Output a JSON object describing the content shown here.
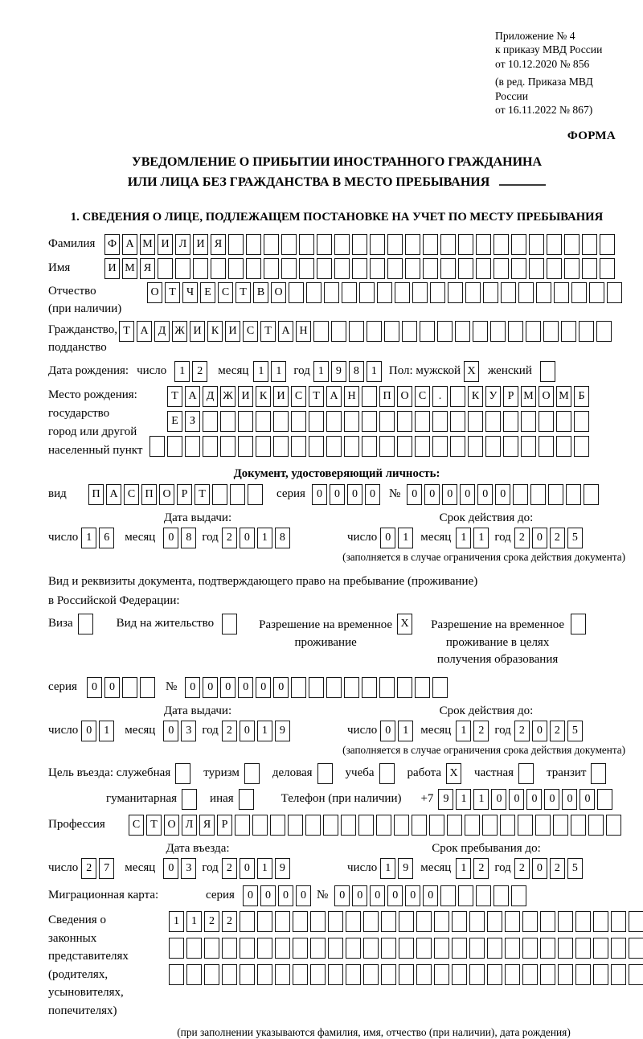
{
  "header": {
    "appendix": [
      "Приложение № 4",
      "к приказу МВД России",
      "от 10.12.2020 № 856"
    ],
    "edition": [
      "(в ред. Приказа МВД России",
      "от 16.11.2022 № 867)"
    ],
    "form_label": "ФОРМА"
  },
  "title": {
    "line1": "УВЕДОМЛЕНИЕ О ПРИБЫТИИ ИНОСТРАННОГО ГРАЖДАНИНА",
    "line2": "ИЛИ ЛИЦА БЕЗ ГРАЖДАНСТВА В МЕСТО ПРЕБЫВАНИЯ"
  },
  "section1": {
    "heading": "1. СВЕДЕНИЯ О ЛИЦЕ, ПОДЛЕЖАЩЕМ ПОСТАНОВКЕ НА УЧЕТ ПО МЕСТУ ПРЕБЫВАНИЯ"
  },
  "date_labels": {
    "day": "число",
    "month": "месяц",
    "year": "год"
  },
  "person": {
    "surname": {
      "label": "Фамилия",
      "row": {
        "value": "ФАМИЛИЯ",
        "cells": 29
      }
    },
    "given_name": {
      "label": "Имя",
      "row": {
        "value": "ИМЯ",
        "cells": 29
      }
    },
    "patronymic": {
      "label": "Отчество",
      "label_note": "(при наличии)",
      "row": {
        "value": "ОТЧЕСТВО",
        "cells": 27
      }
    },
    "citizenship": {
      "label": "Гражданство,",
      "label2": "подданство",
      "row": {
        "value": "ТАДЖИКИСТАН",
        "cells": 28
      }
    },
    "birth_date": {
      "label": "Дата рождения:",
      "day": "12",
      "month": "11",
      "year": "1981"
    },
    "sex": {
      "label": "Пол: мужской",
      "male_value": "X",
      "female_label": "женский",
      "female_value": ""
    },
    "birth_place": {
      "label_lines": [
        "Место рождения:",
        "государство",
        "город или другой",
        "населенный пункт"
      ],
      "row1": {
        "value": "ТАДЖИКИСТАН ПОС. КУРМОМБ",
        "cells": 24
      },
      "row2": {
        "value": "ЕЗ",
        "cells": 24
      },
      "row3": {
        "value": "",
        "cells": 25
      }
    }
  },
  "identity_doc": {
    "heading": "Документ, удостоверяющий личность:",
    "kind_label": "вид",
    "kind": {
      "value": "ПАСПОРТ",
      "cells": 10
    },
    "series_label": "серия",
    "series": {
      "value": "0000",
      "cells": 4
    },
    "number_label": "№",
    "number": {
      "value": "000000",
      "cells": 11
    },
    "issue_heading": "Дата выдачи:",
    "issue": {
      "day": "16",
      "month": "08",
      "year": "2018"
    },
    "valid_heading": "Срок действия до:",
    "valid": {
      "day": "01",
      "month": "11",
      "year": "2025"
    },
    "note": "(заполняется в случае ограничения срока действия документа)"
  },
  "stay_doc": {
    "intro1": "Вид и реквизиты документа, подтверждающего право на пребывание (проживание)",
    "intro2": "в Российской Федерации:",
    "options": [
      {
        "label": "Виза",
        "value": ""
      },
      {
        "label": "Вид на жительство",
        "value": ""
      },
      {
        "label": "Разрешение на временное проживание",
        "value": "X"
      },
      {
        "label": "Разрешение на временное проживание в целях получения образования",
        "value": ""
      }
    ],
    "series_label": "серия",
    "series": {
      "value": "00",
      "cells": 4
    },
    "number_label": "№",
    "number": {
      "value": "000000",
      "cells": 15
    },
    "issue_heading": "Дата выдачи:",
    "issue": {
      "day": "01",
      "month": "03",
      "year": "2019"
    },
    "valid_heading": "Срок действия до:",
    "valid": {
      "day": "01",
      "month": "12",
      "year": "2025"
    },
    "note": "(заполняется в случае ограничения срока действия документа)"
  },
  "entry": {
    "purpose_label": "Цель въезда: служебная",
    "purposes_row1": [
      {
        "label": "туризм",
        "value": ""
      },
      {
        "label": "деловая",
        "value": ""
      },
      {
        "label": "учеба",
        "value": ""
      },
      {
        "label": "работа",
        "value": "X"
      },
      {
        "label": "частная",
        "value": ""
      },
      {
        "label": "транзит",
        "value": ""
      }
    ],
    "purpose_first_value": "",
    "purposes_row2": [
      {
        "label": "гуманитарная",
        "value": ""
      },
      {
        "label": "иная",
        "value": ""
      }
    ],
    "phone_label": "Телефон (при наличии)",
    "phone_prefix": "+7",
    "phone": {
      "value": "911000000",
      "cells": 10
    },
    "profession_label": "Профессия",
    "profession": {
      "value": "СТОЛЯР",
      "cells": 28
    },
    "entry_heading": "Дата въезда:",
    "entry_date": {
      "day": "27",
      "month": "03",
      "year": "2019"
    },
    "stay_heading": "Срок пребывания до:",
    "stay_until": {
      "day": "19",
      "month": "12",
      "year": "2025"
    },
    "migration_card_label": "Миграционная карта:",
    "mc_series_label": "серия",
    "mc_series": {
      "value": "0000",
      "cells": 4
    },
    "mc_number_label": "№",
    "mc_number": {
      "value": "000000",
      "cells": 11
    }
  },
  "legal": {
    "label_lines": [
      "Сведения о",
      "законных",
      "представителях",
      "(родителях,",
      "усыновителях,",
      "попечителях)"
    ],
    "row1": {
      "value": "1122",
      "cells": 28
    },
    "row2": {
      "value": "",
      "cells": 28
    },
    "row3": {
      "value": "",
      "cells": 28
    },
    "caption": "(при заполнении указываются фамилия, имя, отчество (при наличии), дата рождения)"
  }
}
